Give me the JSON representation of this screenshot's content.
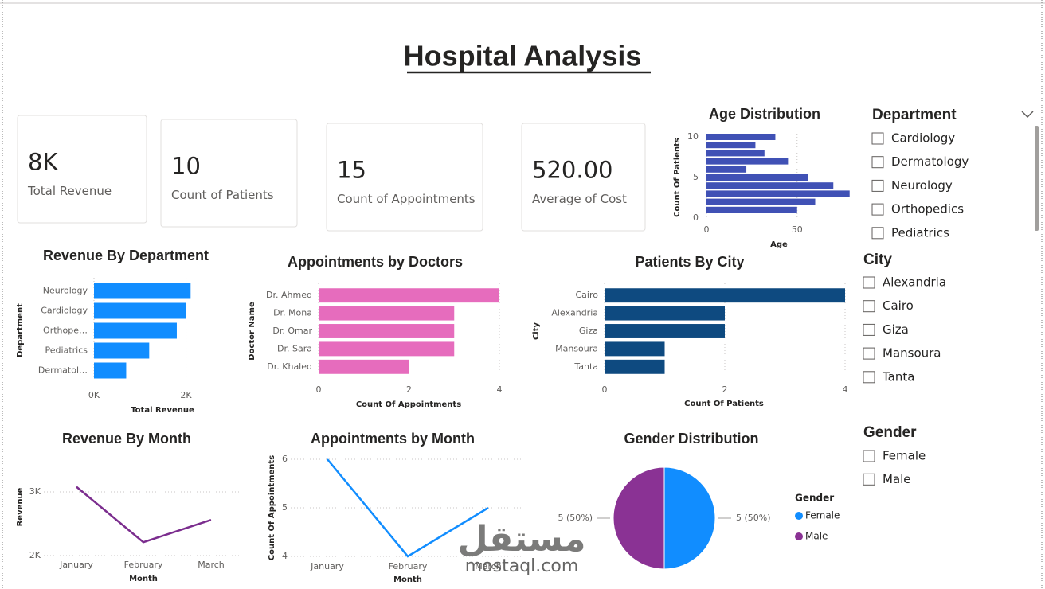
{
  "title": "Hospital Analysis",
  "kpis": [
    {
      "value": "8K",
      "label": "Total Revenue"
    },
    {
      "value": "10",
      "label": "Count of Patients"
    },
    {
      "value": "15",
      "label": "Count of Appointments"
    },
    {
      "value": "520.00",
      "label": "Average of Cost"
    }
  ],
  "slicers": [
    {
      "title": "Department",
      "items": [
        "Cardiology",
        "Dermatology",
        "Neurology",
        "Orthopedics",
        "Pediatrics"
      ]
    },
    {
      "title": "City",
      "items": [
        "Alexandria",
        "Cairo",
        "Giza",
        "Mansoura",
        "Tanta"
      ]
    },
    {
      "title": "Gender",
      "items": [
        "Female",
        "Male"
      ]
    }
  ],
  "watermark": {
    "name": "مستقل",
    "site": "mostaql.com"
  },
  "chart_data": [
    {
      "type": "hbar",
      "title": "Age Distribution",
      "y": [
        10,
        9,
        8,
        7,
        6,
        5,
        4,
        3,
        2,
        1
      ],
      "values": [
        38,
        27,
        32,
        45,
        22,
        56,
        70,
        79,
        60,
        50
      ],
      "color": "#4051b5",
      "x_label": "Age",
      "y_label": "Count Of Patients",
      "xlim": [
        0,
        80
      ],
      "xticks": [
        0,
        50
      ],
      "ylim": [
        0,
        10
      ],
      "yticks": [
        0,
        5,
        10
      ],
      "grid": true
    },
    {
      "type": "hbar",
      "title": "Revenue By Department",
      "categories": [
        "Neurology",
        "Cardiology",
        "Orthope…",
        "Pediatrics",
        "Dermatol…"
      ],
      "values": [
        2100,
        2000,
        1800,
        1200,
        700
      ],
      "color": "#118dff",
      "x_label": "Total Revenue",
      "y_label": "Department",
      "xlim": [
        0,
        2100
      ],
      "xticks": [
        {
          "value": 0,
          "label": "0K"
        },
        {
          "value": 2000,
          "label": "2K"
        }
      ],
      "grid": true
    },
    {
      "type": "hbar",
      "title": "Appointments by Doctors",
      "categories": [
        "Dr. Ahmed",
        "Dr. Mona",
        "Dr. Omar",
        "Dr. Sara",
        "Dr. Khaled"
      ],
      "values": [
        4,
        3,
        3,
        3,
        2
      ],
      "color": "#e66cbd",
      "x_label": "Count Of Appointments",
      "y_label": "Doctor Name",
      "xlim": [
        0,
        4
      ],
      "xticks": [
        0,
        2,
        4
      ],
      "grid": true
    },
    {
      "type": "hbar",
      "title": "Patients By City",
      "categories": [
        "Cairo",
        "Alexandria",
        "Giza",
        "Mansoura",
        "Tanta"
      ],
      "values": [
        4,
        2,
        2,
        1,
        1
      ],
      "color": "#0e4a80",
      "x_label": "Count Of Patients",
      "y_label": "City",
      "xlim": [
        0,
        4
      ],
      "xticks": [
        0,
        2,
        4
      ],
      "grid": true
    },
    {
      "type": "line",
      "title": "Revenue By Month",
      "categories": [
        "January",
        "February",
        "March"
      ],
      "values": [
        3080,
        2210,
        2560
      ],
      "color": "#7b2d8e",
      "x_label": "Month",
      "y_label": "Revenue",
      "ylim": [
        2000,
        3200
      ],
      "yticks": [
        {
          "value": 2000,
          "label": "2K"
        },
        {
          "value": 3000,
          "label": "3K"
        }
      ],
      "grid": true
    },
    {
      "type": "line",
      "title": "Appointments by Month",
      "categories": [
        "January",
        "February",
        "March"
      ],
      "values": [
        6,
        4,
        5
      ],
      "color": "#118dff",
      "x_label": "Month",
      "y_label": "Count Of Appointments",
      "ylim": [
        4,
        6
      ],
      "yticks": [
        4,
        5,
        6
      ],
      "grid": true
    },
    {
      "type": "pie",
      "title": "Gender Distribution",
      "categories": [
        "Female",
        "Male"
      ],
      "values": [
        5,
        5
      ],
      "value_labels": [
        "5 (50%)",
        "5 (50%)"
      ],
      "colors": [
        "#118dff",
        "#8a3294"
      ],
      "legend_title": "Gender",
      "legend": "right"
    }
  ]
}
